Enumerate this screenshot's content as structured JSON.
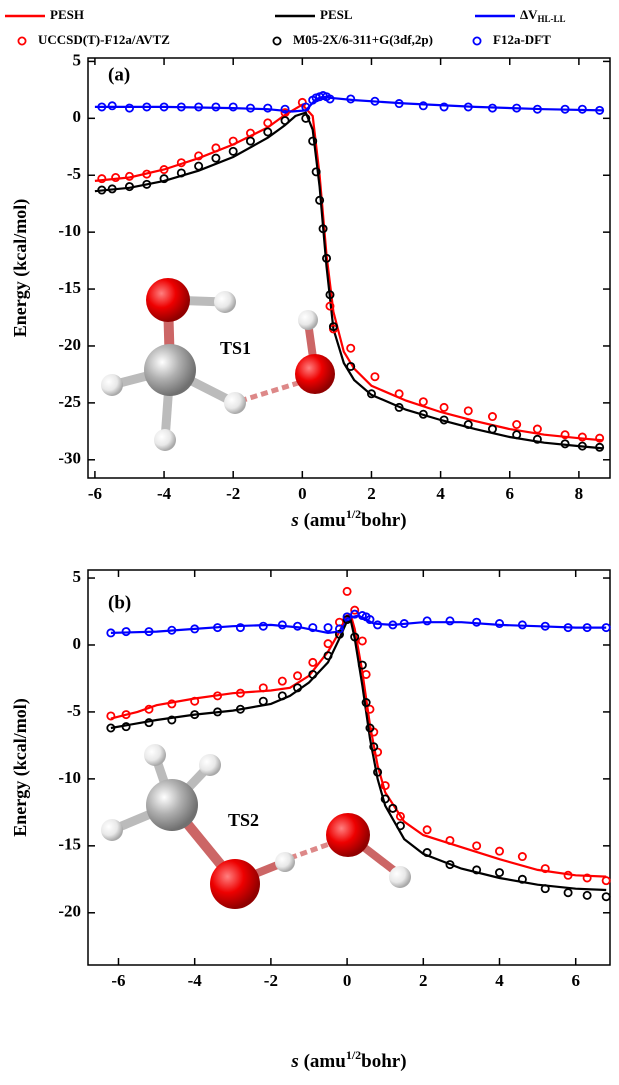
{
  "chart_data": [
    {
      "type": "line",
      "panel_label": "(a)",
      "annotation": "TS1",
      "y_label": "Energy (kcal/mol)",
      "x_label": {
        "var": "s",
        "pre": " (amu",
        "sup": "1/2",
        "post": "bohr)"
      },
      "xlim": [
        -6.2,
        8.9
      ],
      "ylim": [
        -31.6,
        5.3
      ],
      "xticks": [
        -6,
        -4,
        -2,
        0,
        2,
        4,
        6,
        8
      ],
      "yticks": [
        5,
        0,
        -5,
        -10,
        -15,
        -20,
        -25,
        -30
      ],
      "series": [
        {
          "name": "PESH",
          "color": "#ff0000",
          "style": "line",
          "x": [
            -6,
            -5,
            -4,
            -3,
            -2,
            -1,
            -0.5,
            0,
            0.3,
            0.5,
            0.7,
            0.9,
            1.2,
            1.5,
            2,
            3,
            4,
            5,
            6,
            7,
            8,
            8.7
          ],
          "values": [
            -5.5,
            -5.2,
            -4.5,
            -3.5,
            -2.3,
            -0.8,
            0.3,
            1.2,
            0.2,
            -5,
            -12,
            -17,
            -20.5,
            -22,
            -23.5,
            -24.8,
            -25.8,
            -26.6,
            -27.3,
            -27.8,
            -28.1,
            -28.3
          ]
        },
        {
          "name": "PESL",
          "color": "#000000",
          "style": "line",
          "x": [
            -6,
            -5,
            -4,
            -3,
            -2,
            -1,
            -0.5,
            -0.2,
            0.1,
            0.3,
            0.5,
            0.7,
            0.9,
            1.2,
            1.5,
            2,
            3,
            4,
            5,
            6,
            7,
            8,
            8.7
          ],
          "values": [
            -6.4,
            -6.1,
            -5.5,
            -4.6,
            -3.4,
            -1.7,
            -0.6,
            0.2,
            0.5,
            -1,
            -6,
            -13,
            -18.5,
            -21.5,
            -23,
            -24.3,
            -25.6,
            -26.5,
            -27.3,
            -28,
            -28.5,
            -28.8,
            -29
          ]
        },
        {
          "name": "ΔV",
          "name_subscript": "HL-LL",
          "color": "#0000ff",
          "style": "line",
          "x": [
            -6,
            -4,
            -2,
            -1,
            -0.3,
            0.1,
            0.4,
            0.6,
            0.8,
            1.5,
            3,
            5,
            7,
            8.7
          ],
          "values": [
            1,
            1,
            0.9,
            0.8,
            0.6,
            0.7,
            1.7,
            1.9,
            1.8,
            1.6,
            1.3,
            1,
            0.8,
            0.7
          ]
        },
        {
          "name": "UCCSD(T)-F12a/AVTZ",
          "color": "#ff0000",
          "style": "marker",
          "x": [
            -5.8,
            -5.4,
            -5,
            -4.5,
            -4,
            -3.5,
            -3,
            -2.5,
            -2,
            -1.5,
            -1,
            -0.5,
            0,
            0.8,
            0.9,
            1.4,
            2.1,
            2.8,
            3.5,
            4.1,
            4.8,
            5.5,
            6.2,
            6.8,
            7.6,
            8.1,
            8.6
          ],
          "values": [
            -5.3,
            -5.2,
            -5.1,
            -4.9,
            -4.5,
            -3.9,
            -3.3,
            -2.6,
            -2,
            -1.3,
            -0.4,
            0.5,
            1.4,
            -16.5,
            -18.5,
            -20.2,
            -22.7,
            -24.2,
            -24.9,
            -25.4,
            -25.7,
            -26.2,
            -26.9,
            -27.3,
            -27.8,
            -28,
            -28.1
          ]
        },
        {
          "name": "M05-2X/6-311+G(3df,2p)",
          "color": "#000000",
          "style": "marker",
          "x": [
            -5.8,
            -5.5,
            -5,
            -4.5,
            -4,
            -3.5,
            -3,
            -2.5,
            -2,
            -1.5,
            -1,
            -0.5,
            0.1,
            0.3,
            0.4,
            0.5,
            0.6,
            0.7,
            0.8,
            0.9,
            1.4,
            2,
            2.8,
            3.5,
            4.1,
            4.8,
            5.5,
            6.2,
            6.8,
            7.6,
            8.1,
            8.6
          ],
          "values": [
            -6.3,
            -6.2,
            -6,
            -5.8,
            -5.3,
            -4.8,
            -4.2,
            -3.5,
            -2.9,
            -2,
            -1.2,
            -0.2,
            0,
            -2,
            -4.7,
            -7.2,
            -9.7,
            -12.3,
            -15.5,
            -18.3,
            -21.8,
            -24.2,
            -25.4,
            -26,
            -26.5,
            -26.9,
            -27.3,
            -27.8,
            -28.2,
            -28.6,
            -28.8,
            -28.9
          ]
        },
        {
          "name": "F12a-DFT",
          "color": "#0000ff",
          "style": "marker",
          "x": [
            -5.8,
            -5.5,
            -5,
            -4.5,
            -4,
            -3.5,
            -3,
            -2.5,
            -2,
            -1.5,
            -1,
            -0.5,
            0.1,
            0.3,
            0.4,
            0.5,
            0.6,
            0.7,
            0.8,
            1.4,
            2.1,
            2.8,
            3.5,
            4.1,
            4.8,
            5.5,
            6.2,
            6.8,
            7.6,
            8.1,
            8.6
          ],
          "values": [
            1,
            1.1,
            0.9,
            1,
            1,
            1,
            1,
            1,
            1,
            0.9,
            0.9,
            0.8,
            1,
            1.6,
            1.8,
            1.9,
            2,
            1.9,
            1.7,
            1.7,
            1.5,
            1.3,
            1.1,
            1,
            1,
            0.9,
            0.9,
            0.8,
            0.8,
            0.8,
            0.7
          ]
        }
      ]
    },
    {
      "type": "line",
      "panel_label": "(b)",
      "annotation": "TS2",
      "y_label": "Energy (kcal/mol)",
      "x_label": {
        "var": "s",
        "pre": " (amu",
        "sup": "1/2",
        "post": "bohr)"
      },
      "xlim": [
        -6.8,
        6.9
      ],
      "ylim": [
        -23.9,
        5.6
      ],
      "xticks": [
        -6,
        -4,
        -2,
        0,
        2,
        4,
        6
      ],
      "yticks": [
        5,
        0,
        -5,
        -10,
        -15,
        -20
      ],
      "series": [
        {
          "color": "#ff0000",
          "style": "line",
          "x": [
            -6.2,
            -5.5,
            -5,
            -4,
            -3,
            -2,
            -1.5,
            -1,
            -0.5,
            -0.2,
            0,
            0.1,
            0.2,
            0.4,
            0.6,
            0.8,
            1,
            1.5,
            2,
            3,
            4,
            5,
            6,
            6.8
          ],
          "values": [
            -5.5,
            -5,
            -4.5,
            -4,
            -3.6,
            -3.4,
            -3.2,
            -2.3,
            -0.5,
            1,
            2.2,
            2.2,
            1.2,
            -2,
            -6,
            -9,
            -11,
            -13.2,
            -14.2,
            -15.1,
            -16,
            -16.8,
            -17.2,
            -17.3
          ]
        },
        {
          "color": "#000000",
          "style": "line",
          "x": [
            -6.2,
            -5,
            -4,
            -3,
            -2,
            -1.5,
            -1,
            -0.5,
            -0.2,
            0,
            0.1,
            0.2,
            0.4,
            0.6,
            0.8,
            1,
            1.5,
            2,
            3,
            4,
            5,
            6,
            6.8
          ],
          "values": [
            -6.2,
            -5.6,
            -5.2,
            -4.9,
            -4.4,
            -3.8,
            -2.8,
            -1.3,
            0.5,
            1.8,
            1.8,
            0.5,
            -3,
            -7,
            -10,
            -12,
            -14.5,
            -15.6,
            -16.7,
            -17.4,
            -17.9,
            -18.2,
            -18.3
          ]
        },
        {
          "color": "#0000ff",
          "style": "line",
          "x": [
            -6.2,
            -5,
            -4,
            -3,
            -2,
            -1.2,
            -0.5,
            -0.2,
            0,
            0.3,
            0.7,
            1.2,
            2,
            3,
            4,
            5,
            6,
            6.8
          ],
          "values": [
            0.9,
            1,
            1.2,
            1.4,
            1.5,
            1.3,
            0.9,
            1,
            2,
            2.2,
            1.6,
            1.5,
            1.7,
            1.7,
            1.5,
            1.4,
            1.3,
            1.3
          ]
        },
        {
          "color": "#ff0000",
          "style": "marker",
          "x": [
            -6.2,
            -5.8,
            -5.2,
            -4.6,
            -4,
            -3.4,
            -2.8,
            -2.2,
            -1.7,
            -1.3,
            -0.9,
            -0.5,
            -0.2,
            0,
            0.2,
            0.4,
            0.5,
            0.6,
            0.7,
            0.8,
            1,
            1.2,
            1.4,
            2.1,
            2.7,
            3.4,
            4,
            4.6,
            5.2,
            5.8,
            6.3,
            6.8
          ],
          "values": [
            -5.3,
            -5.2,
            -4.8,
            -4.4,
            -4.2,
            -3.8,
            -3.6,
            -3.2,
            -2.7,
            -2.3,
            -1.3,
            0.1,
            1.7,
            4,
            2.6,
            0.3,
            -2.2,
            -4.8,
            -6.5,
            -8,
            -10.5,
            -12.2,
            -12.8,
            -13.8,
            -14.6,
            -15,
            -15.4,
            -15.8,
            -16.7,
            -17.2,
            -17.4,
            -17.6
          ]
        },
        {
          "color": "#000000",
          "style": "marker",
          "x": [
            -6.2,
            -5.8,
            -5.2,
            -4.6,
            -4,
            -3.4,
            -2.8,
            -2.2,
            -1.7,
            -1.3,
            -0.9,
            -0.5,
            -0.2,
            0,
            0.2,
            0.4,
            0.5,
            0.6,
            0.7,
            0.8,
            1,
            1.2,
            1.4,
            2.1,
            2.7,
            3.4,
            4,
            4.6,
            5.2,
            5.8,
            6.3,
            6.8
          ],
          "values": [
            -6.2,
            -6.1,
            -5.8,
            -5.6,
            -5.2,
            -5,
            -4.8,
            -4.2,
            -3.8,
            -3.2,
            -2.2,
            -0.8,
            0.8,
            1.9,
            0.6,
            -1.5,
            -4.3,
            -6.2,
            -7.6,
            -9.5,
            -11.5,
            -12.2,
            -13.5,
            -15.5,
            -16.4,
            -16.8,
            -17,
            -17.5,
            -18.2,
            -18.5,
            -18.7,
            -18.8
          ]
        },
        {
          "color": "#0000ff",
          "style": "marker",
          "x": [
            -6.2,
            -5.8,
            -5.2,
            -4.6,
            -4,
            -3.4,
            -2.8,
            -2.2,
            -1.7,
            -1.3,
            -0.9,
            -0.5,
            -0.2,
            0,
            0.2,
            0.4,
            0.5,
            0.6,
            0.8,
            1.2,
            1.5,
            2.1,
            2.7,
            3.4,
            4,
            4.6,
            5.2,
            5.8,
            6.3,
            6.8
          ],
          "values": [
            0.9,
            1,
            1,
            1.1,
            1.2,
            1.3,
            1.3,
            1.4,
            1.5,
            1.4,
            1.3,
            1.3,
            1.2,
            2.1,
            2.3,
            2.2,
            2.1,
            1.9,
            1.5,
            1.5,
            1.6,
            1.8,
            1.8,
            1.7,
            1.6,
            1.5,
            1.4,
            1.3,
            1.3,
            1.3
          ]
        }
      ]
    }
  ]
}
